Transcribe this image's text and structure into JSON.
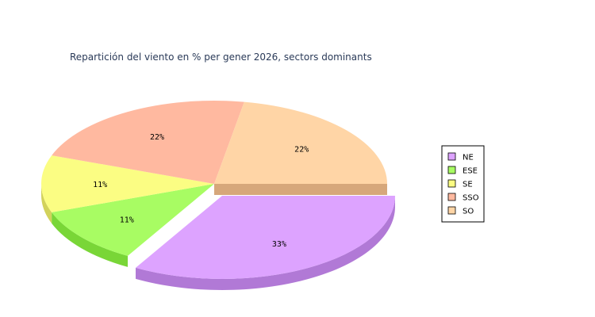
{
  "chart_data": {
    "type": "pie",
    "title": "Repartición del viento en % per gener 2026, sectors dominants",
    "slices": [
      {
        "label": "NE",
        "value": 33,
        "display": "33%",
        "color": "#dda3ff",
        "side_color": "#b179d6",
        "exploded": true
      },
      {
        "label": "ESE",
        "value": 11,
        "display": "11%",
        "color": "#a8fc63",
        "side_color": "#79d637",
        "exploded": false
      },
      {
        "label": "SE",
        "value": 11,
        "display": "11%",
        "color": "#fbfd83",
        "side_color": "#d2d25b",
        "exploded": false
      },
      {
        "label": "SSO",
        "value": 22,
        "display": "22%",
        "color": "#ffb9a0",
        "side_color": "#d69478",
        "exploded": false
      },
      {
        "label": "SO",
        "value": 22,
        "display": "22%",
        "color": "#ffd5a6",
        "side_color": "#d6a77b",
        "exploded": false
      }
    ],
    "legend": {
      "placement": "right",
      "entries": [
        "NE",
        "ESE",
        "SE",
        "SSO",
        "SO"
      ]
    },
    "three_d": true,
    "grid": false
  }
}
